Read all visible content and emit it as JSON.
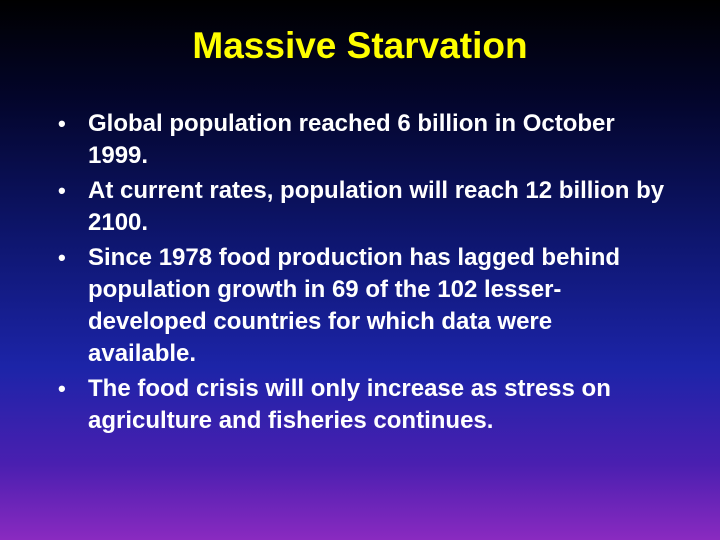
{
  "slide": {
    "title": "Massive Starvation",
    "bullet_marker": "•",
    "bullets": [
      "Global population reached 6 billion in October 1999.",
      "At current rates, population will reach 12 billion by 2100.",
      "Since 1978 food production has lagged behind population growth in 69 of the 102 lesser-developed countries for which data were available.",
      "The food crisis will only increase as stress on agriculture and fisheries continues."
    ],
    "colors": {
      "title": "#ffff00",
      "text": "#ffffff",
      "background_top": "#000000",
      "background_bottom": "#8a2ac0"
    }
  }
}
